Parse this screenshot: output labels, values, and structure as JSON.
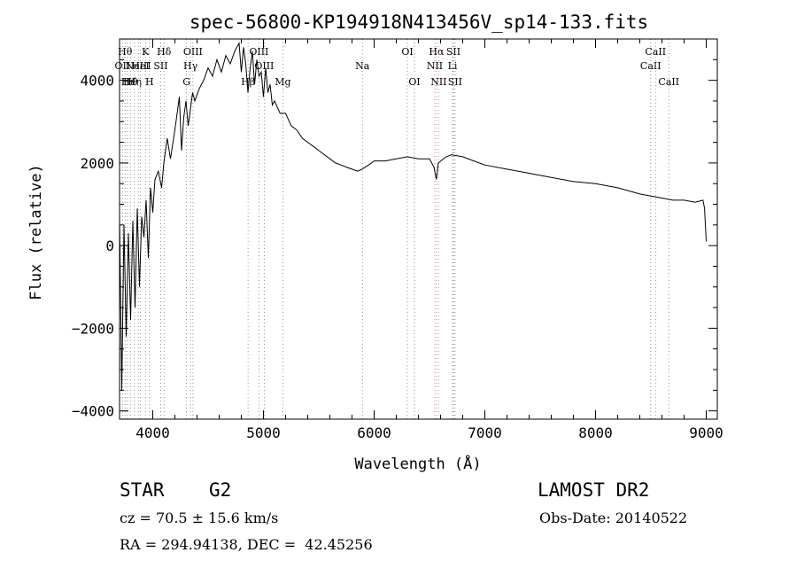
{
  "chart_data": {
    "type": "line",
    "title": "spec-56800-KP194918N413456V_sp14-133.fits",
    "xlabel": "Wavelength (Å)",
    "ylabel": "Flux (relative)",
    "xlim": [
      3700,
      9100
    ],
    "ylim": [
      -4200,
      5000
    ],
    "x_ticks": [
      4000,
      5000,
      6000,
      7000,
      8000,
      9000
    ],
    "y_ticks": [
      -4000,
      -2000,
      0,
      2000,
      4000
    ],
    "series": [
      {
        "x": [
          3700,
          3720,
          3740,
          3760,
          3780,
          3800,
          3820,
          3840,
          3860,
          3880,
          3900,
          3920,
          3940,
          3960,
          3980,
          4000,
          4020,
          4050,
          4080,
          4100,
          4130,
          4160,
          4200,
          4240,
          4260,
          4280,
          4300,
          4320,
          4340,
          4360,
          4380,
          4420,
          4460,
          4500,
          4540,
          4580,
          4620,
          4660,
          4700,
          4740,
          4780,
          4800,
          4820,
          4840,
          4860,
          4880,
          4900,
          4920,
          4940,
          4960,
          4980,
          5000,
          5020,
          5040,
          5060,
          5080,
          5100,
          5150,
          5200,
          5250,
          5300,
          5350,
          5400,
          5450,
          5500,
          5550,
          5600,
          5650,
          5700,
          5750,
          5800,
          5850,
          5890,
          5950,
          6000,
          6100,
          6200,
          6300,
          6400,
          6500,
          6540,
          6562,
          6580,
          6650,
          6700,
          6800,
          6900,
          7000,
          7200,
          7400,
          7600,
          7800,
          8000,
          8200,
          8400,
          8500,
          8600,
          8700,
          8800,
          8900,
          8970,
          8985,
          9000
        ],
        "y": [
          700,
          -3500,
          500,
          -2200,
          300,
          -1800,
          600,
          -1500,
          900,
          -1000,
          700,
          200,
          1100,
          -300,
          1400,
          800,
          1600,
          1800,
          1400,
          2000,
          2600,
          2100,
          2800,
          3600,
          2300,
          3100,
          3500,
          2900,
          3300,
          3700,
          3500,
          3800,
          4000,
          4300,
          4100,
          4500,
          4200,
          4600,
          4400,
          4700,
          4900,
          4200,
          4800,
          4400,
          3700,
          4300,
          4700,
          3900,
          4500,
          4100,
          4200,
          3600,
          4300,
          3700,
          3900,
          3400,
          3500,
          3200,
          3200,
          2900,
          2800,
          2600,
          2500,
          2400,
          2300,
          2200,
          2100,
          2000,
          1950,
          1900,
          1850,
          1800,
          1850,
          1950,
          2050,
          2050,
          2100,
          2150,
          2100,
          2100,
          1900,
          1600,
          2000,
          2150,
          2200,
          2150,
          2050,
          1950,
          1850,
          1750,
          1650,
          1550,
          1500,
          1400,
          1250,
          1200,
          1150,
          1100,
          1100,
          1050,
          1100,
          900,
          100
        ]
      }
    ],
    "line_marks": [
      {
        "wave": 3727,
        "label": "OII",
        "row": 2
      },
      {
        "wave": 3750,
        "label": "Hθ",
        "row": 1
      },
      {
        "wave": 3771,
        "label": "Hι",
        "row": 3
      },
      {
        "wave": 3798,
        "label": "Hθ",
        "row": 3
      },
      {
        "wave": 3835,
        "label": "Hη",
        "row": 3
      },
      {
        "wave": 3869,
        "label": "NeIII",
        "row": 2
      },
      {
        "wave": 3889,
        "label": "HeI",
        "row": 2
      },
      {
        "wave": 3934,
        "label": "K",
        "row": 1
      },
      {
        "wave": 3970,
        "label": "H",
        "row": 3
      },
      {
        "wave": 4072,
        "label": "SII",
        "row": 2
      },
      {
        "wave": 4102,
        "label": "Hδ",
        "row": 1
      },
      {
        "wave": 4305,
        "label": "G",
        "row": 3
      },
      {
        "wave": 4341,
        "label": "Hγ",
        "row": 2
      },
      {
        "wave": 4363,
        "label": "OIII",
        "row": 1
      },
      {
        "wave": 4861,
        "label": "Hβ",
        "row": 3
      },
      {
        "wave": 4959,
        "label": "OIII",
        "row": 1
      },
      {
        "wave": 5007,
        "label": "OIII",
        "row": 2
      },
      {
        "wave": 5175,
        "label": "Mg",
        "row": 3
      },
      {
        "wave": 5894,
        "label": "Na",
        "row": 2
      },
      {
        "wave": 6300,
        "label": "OI",
        "row": 1
      },
      {
        "wave": 6364,
        "label": "OI",
        "row": 3
      },
      {
        "wave": 6548,
        "label": "NII",
        "row": 2
      },
      {
        "wave": 6563,
        "label": "Hα",
        "row": 1
      },
      {
        "wave": 6583,
        "label": "NII",
        "row": 3
      },
      {
        "wave": 6708,
        "label": "Li",
        "row": 2
      },
      {
        "wave": 6716,
        "label": "SII",
        "row": 1
      },
      {
        "wave": 6731,
        "label": "SII",
        "row": 3
      },
      {
        "wave": 8498,
        "label": "CaII",
        "row": 2
      },
      {
        "wave": 8542,
        "label": "CaII",
        "row": 1
      },
      {
        "wave": 8662,
        "label": "CaII",
        "row": 3
      }
    ]
  },
  "info": {
    "obj_class": "STAR",
    "subclass": "G2",
    "survey": "LAMOST DR2",
    "cz": "cz = 70.5 ± 15.6 km/s",
    "obs_date": "Obs-Date: 20140522",
    "coords": "RA = 294.94138, DEC =  42.45256"
  }
}
